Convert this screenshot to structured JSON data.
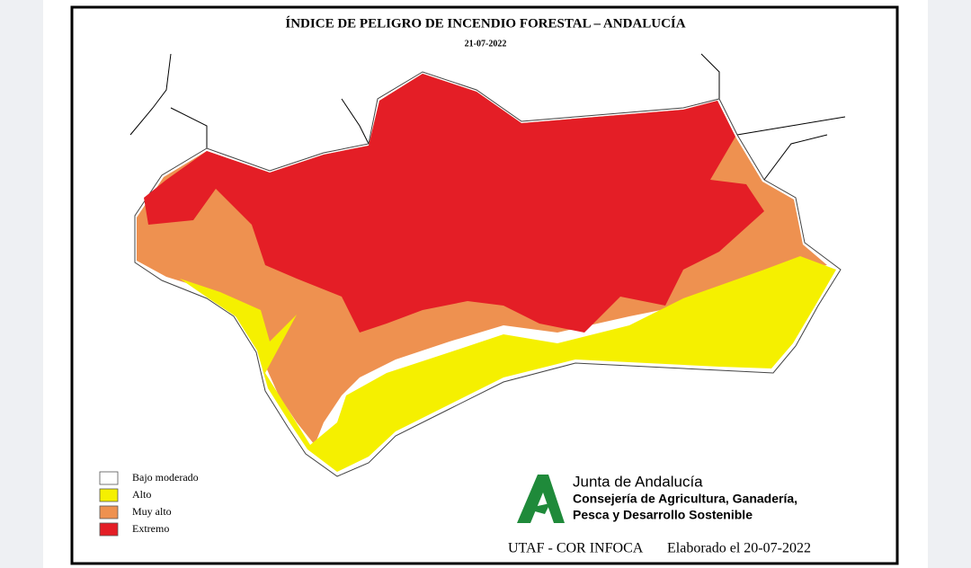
{
  "header": {
    "title": "ÍNDICE DE PELIGRO DE INCENDIO FORESTAL – ANDALUCÍA",
    "date": "21-07-2022"
  },
  "legend": [
    {
      "label": "Bajo moderado",
      "color": "#ffffff"
    },
    {
      "label": "Alto",
      "color": "#f5f000"
    },
    {
      "label": "Muy alto",
      "color": "#ee9150"
    },
    {
      "label": "Extremo",
      "color": "#e41e26"
    }
  ],
  "logo": {
    "name": "Junta de Andalucía",
    "line1": "Consejería de Agricultura, Ganadería,",
    "line2": "Pesca y Desarrollo Sostenible"
  },
  "footer": {
    "source": "UTAF - COR INFOCA",
    "made": "Elaborado el 20-07-2022"
  }
}
